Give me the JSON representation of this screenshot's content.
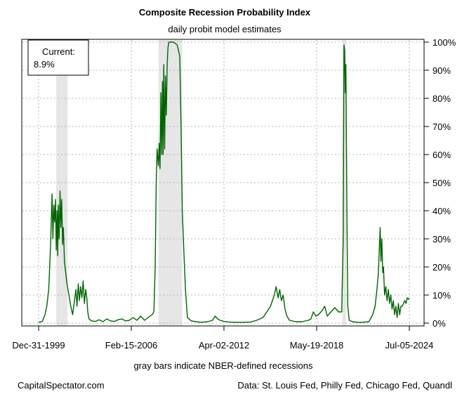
{
  "chart_data": {
    "type": "line",
    "title": "Composite Recession Probability Index",
    "subtitle": "daily probit model estimates",
    "xlabel": "gray bars indicate NBER-defined recessions",
    "ylabel": "",
    "x_ticks": [
      "Dec-31-1999",
      "Feb-15-2006",
      "Apr-02-2012",
      "May-19-2018",
      "Jul-05-2024"
    ],
    "y_ticks": [
      "0%",
      "10%",
      "20%",
      "30%",
      "40%",
      "50%",
      "60%",
      "70%",
      "80%",
      "90%",
      "100%"
    ],
    "ylim": [
      0,
      100
    ],
    "grid": true,
    "line_color": "#006400",
    "recession_color": "#e6e6e6",
    "recessions": [
      {
        "start": "2001-03-01",
        "end": "2001-11-30"
      },
      {
        "start": "2007-12-01",
        "end": "2009-06-30"
      },
      {
        "start": "2020-02-01",
        "end": "2020-04-30"
      }
    ],
    "callout": {
      "line1": "Current:",
      "line2": "8.9%"
    },
    "series": [
      {
        "values": [
          [
            "1999-12-31",
            0.2
          ],
          [
            "2000-02-01",
            0.4
          ],
          [
            "2000-04-01",
            0.6
          ],
          [
            "2000-06-01",
            3
          ],
          [
            "2000-07-15",
            6
          ],
          [
            "2000-09-01",
            12
          ],
          [
            "2000-10-15",
            28
          ],
          [
            "2000-11-20",
            46
          ],
          [
            "2000-12-10",
            30
          ],
          [
            "2001-01-01",
            42
          ],
          [
            "2001-01-20",
            36
          ],
          [
            "2001-02-10",
            44
          ],
          [
            "2001-03-01",
            26
          ],
          [
            "2001-03-20",
            40
          ],
          [
            "2001-04-05",
            24
          ],
          [
            "2001-04-20",
            42
          ],
          [
            "2001-05-10",
            30
          ],
          [
            "2001-06-01",
            47
          ],
          [
            "2001-06-20",
            34
          ],
          [
            "2001-07-10",
            44
          ],
          [
            "2001-08-01",
            28
          ],
          [
            "2001-08-20",
            34
          ],
          [
            "2001-09-15",
            22
          ],
          [
            "2001-10-15",
            18
          ],
          [
            "2001-11-15",
            14
          ],
          [
            "2002-01-01",
            10
          ],
          [
            "2002-02-15",
            6
          ],
          [
            "2002-04-01",
            3
          ],
          [
            "2002-05-15",
            8
          ],
          [
            "2002-06-20",
            12
          ],
          [
            "2002-07-15",
            6
          ],
          [
            "2002-08-15",
            14
          ],
          [
            "2002-09-10",
            8
          ],
          [
            "2002-10-10",
            13
          ],
          [
            "2002-11-10",
            9
          ],
          [
            "2002-12-10",
            15
          ],
          [
            "2003-01-10",
            7
          ],
          [
            "2003-02-10",
            12
          ],
          [
            "2003-03-10",
            9
          ],
          [
            "2003-04-01",
            4
          ],
          [
            "2003-05-01",
            1.5
          ],
          [
            "2003-07-01",
            0.8
          ],
          [
            "2003-10-01",
            0.6
          ],
          [
            "2004-01-01",
            1.2
          ],
          [
            "2004-04-01",
            0.5
          ],
          [
            "2004-07-01",
            1.5
          ],
          [
            "2004-10-01",
            0.8
          ],
          [
            "2005-01-01",
            0.6
          ],
          [
            "2005-04-01",
            1.2
          ],
          [
            "2005-07-01",
            1.5
          ],
          [
            "2005-10-01",
            0.8
          ],
          [
            "2006-01-01",
            1
          ],
          [
            "2006-04-01",
            2
          ],
          [
            "2006-07-01",
            1
          ],
          [
            "2006-10-01",
            2.5
          ],
          [
            "2007-01-01",
            1
          ],
          [
            "2007-04-01",
            2
          ],
          [
            "2007-07-01",
            3
          ],
          [
            "2007-08-15",
            4
          ],
          [
            "2007-09-15",
            20
          ],
          [
            "2007-10-10",
            50
          ],
          [
            "2007-11-01",
            62
          ],
          [
            "2007-12-01",
            56
          ],
          [
            "2007-12-20",
            64
          ],
          [
            "2008-01-10",
            55
          ],
          [
            "2008-02-01",
            82
          ],
          [
            "2008-02-20",
            60
          ],
          [
            "2008-03-10",
            86
          ],
          [
            "2008-03-25",
            60
          ],
          [
            "2008-04-10",
            92
          ],
          [
            "2008-05-01",
            62
          ],
          [
            "2008-05-20",
            88
          ],
          [
            "2008-06-10",
            74
          ],
          [
            "2008-07-01",
            92
          ],
          [
            "2008-07-20",
            98
          ],
          [
            "2008-08-10",
            100
          ],
          [
            "2008-09-01",
            100
          ],
          [
            "2008-12-01",
            100
          ],
          [
            "2009-03-01",
            99
          ],
          [
            "2009-05-01",
            95
          ],
          [
            "2009-06-01",
            70
          ],
          [
            "2009-07-01",
            40
          ],
          [
            "2009-08-01",
            28
          ],
          [
            "2009-09-15",
            12
          ],
          [
            "2009-11-01",
            2
          ],
          [
            "2010-02-01",
            0.8
          ],
          [
            "2010-06-01",
            0.5
          ],
          [
            "2010-10-01",
            0.3
          ],
          [
            "2011-03-01",
            0.5
          ],
          [
            "2011-07-01",
            1
          ],
          [
            "2011-09-01",
            2.5
          ],
          [
            "2011-11-01",
            1.5
          ],
          [
            "2012-01-01",
            1
          ],
          [
            "2012-04-01",
            0.6
          ],
          [
            "2012-08-01",
            0.4
          ],
          [
            "2013-01-01",
            0.3
          ],
          [
            "2013-06-01",
            0.3
          ],
          [
            "2014-01-01",
            0.4
          ],
          [
            "2014-06-01",
            1
          ],
          [
            "2014-11-01",
            2
          ],
          [
            "2015-02-01",
            4
          ],
          [
            "2015-05-01",
            6
          ],
          [
            "2015-08-01",
            10
          ],
          [
            "2015-09-15",
            13
          ],
          [
            "2015-11-01",
            9
          ],
          [
            "2015-12-10",
            12
          ],
          [
            "2016-01-20",
            8
          ],
          [
            "2016-03-01",
            10
          ],
          [
            "2016-04-15",
            5
          ],
          [
            "2016-06-01",
            2.5
          ],
          [
            "2016-08-01",
            1
          ],
          [
            "2017-01-01",
            0.5
          ],
          [
            "2017-06-01",
            0.5
          ],
          [
            "2017-11-01",
            1
          ],
          [
            "2018-01-01",
            1.5
          ],
          [
            "2018-03-01",
            4
          ],
          [
            "2018-05-01",
            2.5
          ],
          [
            "2018-07-01",
            3
          ],
          [
            "2018-10-01",
            4.5
          ],
          [
            "2018-12-01",
            6
          ],
          [
            "2019-02-01",
            2.5
          ],
          [
            "2019-05-01",
            4
          ],
          [
            "2019-08-01",
            5.5
          ],
          [
            "2019-11-01",
            4
          ],
          [
            "2020-01-15",
            4
          ],
          [
            "2020-02-20",
            30
          ],
          [
            "2020-03-10",
            99
          ],
          [
            "2020-03-25",
            97
          ],
          [
            "2020-04-10",
            82
          ],
          [
            "2020-04-25",
            92
          ],
          [
            "2020-05-10",
            60
          ],
          [
            "2020-05-25",
            30
          ],
          [
            "2020-06-10",
            6
          ],
          [
            "2020-07-15",
            1
          ],
          [
            "2020-10-01",
            0.5
          ],
          [
            "2021-02-01",
            0.3
          ],
          [
            "2021-06-01",
            0.3
          ],
          [
            "2021-11-01",
            0.5
          ],
          [
            "2022-02-01",
            3
          ],
          [
            "2022-04-01",
            6
          ],
          [
            "2022-05-15",
            12
          ],
          [
            "2022-06-20",
            18
          ],
          [
            "2022-07-15",
            28
          ],
          [
            "2022-08-01",
            34
          ],
          [
            "2022-08-20",
            22
          ],
          [
            "2022-09-10",
            30
          ],
          [
            "2022-10-01",
            18
          ],
          [
            "2022-10-20",
            20
          ],
          [
            "2022-11-15",
            10
          ],
          [
            "2022-12-15",
            13
          ],
          [
            "2023-01-15",
            8
          ],
          [
            "2023-02-15",
            12
          ],
          [
            "2023-03-15",
            7
          ],
          [
            "2023-04-15",
            10
          ],
          [
            "2023-05-15",
            5
          ],
          [
            "2023-06-15",
            8
          ],
          [
            "2023-07-15",
            3
          ],
          [
            "2023-08-15",
            6
          ],
          [
            "2023-09-15",
            2
          ],
          [
            "2023-10-15",
            7
          ],
          [
            "2023-11-15",
            3
          ],
          [
            "2023-12-15",
            6
          ],
          [
            "2024-01-15",
            6
          ],
          [
            "2024-02-15",
            7
          ],
          [
            "2024-03-15",
            8
          ],
          [
            "2024-04-15",
            7
          ],
          [
            "2024-05-15",
            9
          ],
          [
            "2024-06-15",
            8.5
          ],
          [
            "2024-07-05",
            8.9
          ]
        ]
      }
    ]
  },
  "footer": {
    "left": "CapitalSpectator.com",
    "right": "Data: St. Louis Fed, Philly Fed, Chicago Fed, Quandl"
  }
}
